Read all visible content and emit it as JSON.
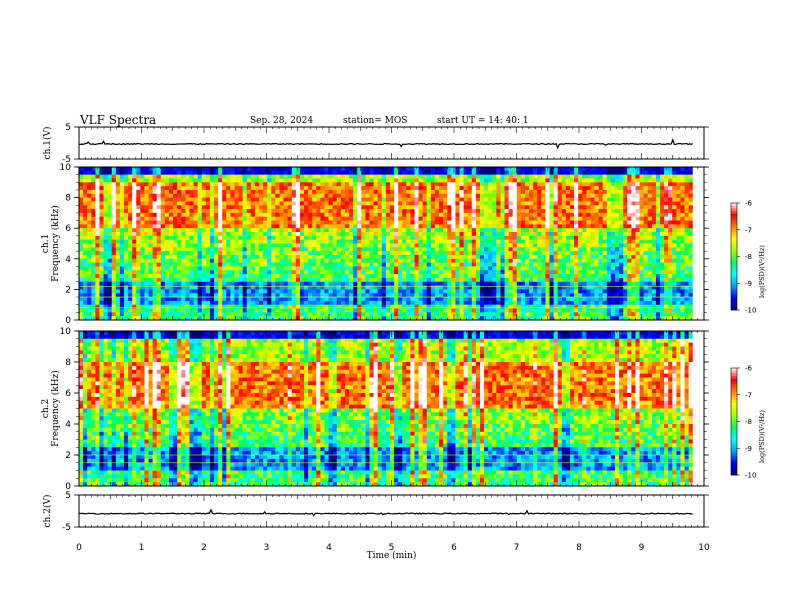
{
  "header": {
    "title": "VLF Spectra",
    "date": "Sep. 28, 2024",
    "station": "station= MOS",
    "start_ut": "start UT =   14: 40: 1"
  },
  "chart_data": [
    {
      "type": "line",
      "panel": "ch1-waveform",
      "ylabel": "ch.1(V)",
      "ylim": [
        -5,
        5
      ],
      "yticks": [
        "5",
        "-5"
      ],
      "xlim": [
        0,
        10
      ],
      "baseline_value": -0.3,
      "series_end_min": 9.82,
      "color": "#000000"
    },
    {
      "type": "heatmap",
      "panel": "ch1-spectrogram",
      "ylabel": "ch.1",
      "ylabel2": "Frequency (kHz)",
      "ylim": [
        0,
        10
      ],
      "yticks": [
        "0",
        "2",
        "4",
        "6",
        "8",
        "10"
      ],
      "xlim": [
        0,
        10
      ],
      "data_end_min": 9.82,
      "hlines_khz": [
        1.5,
        2.2,
        0.8
      ],
      "intense_band_khz": [
        6,
        9
      ],
      "colorbar": {
        "label": "log(PSD)(V²/Hz)",
        "range": [
          -10,
          -6
        ],
        "ticks": [
          "-6",
          "-7",
          "-8",
          "-9",
          "-10"
        ]
      }
    },
    {
      "type": "heatmap",
      "panel": "ch2-spectrogram",
      "ylabel": "ch.2",
      "ylabel2": "Frequency (kHz)",
      "ylim": [
        0,
        10
      ],
      "yticks": [
        "0",
        "2",
        "4",
        "6",
        "8",
        "10"
      ],
      "xlim": [
        0,
        10
      ],
      "data_end_min": 9.82,
      "hlines_khz": [
        1.5,
        2.0
      ],
      "intense_band_khz": [
        5,
        8
      ],
      "colorbar": {
        "label": "log(PSD)(V²/Hz)",
        "range": [
          -10,
          -6
        ],
        "ticks": [
          "-6",
          "-7",
          "-8",
          "-9",
          "-10"
        ]
      }
    },
    {
      "type": "line",
      "panel": "ch2-waveform",
      "ylabel": "ch.2(V)",
      "ylim": [
        -5,
        5
      ],
      "yticks": [
        "5",
        "-5"
      ],
      "xlim": [
        0,
        10
      ],
      "baseline_value": -0.8,
      "series_end_min": 9.82,
      "color": "#000000"
    }
  ],
  "xaxis": {
    "label": "Time (min)",
    "ticks": [
      "0",
      "1",
      "2",
      "3",
      "4",
      "5",
      "6",
      "7",
      "8",
      "9",
      "10"
    ]
  },
  "colors": {
    "scale": [
      "#000080",
      "#0000ff",
      "#00a0ff",
      "#00ffff",
      "#00ff60",
      "#a0ff00",
      "#ffff00",
      "#ff8000",
      "#ff0000",
      "#ffffff"
    ]
  }
}
